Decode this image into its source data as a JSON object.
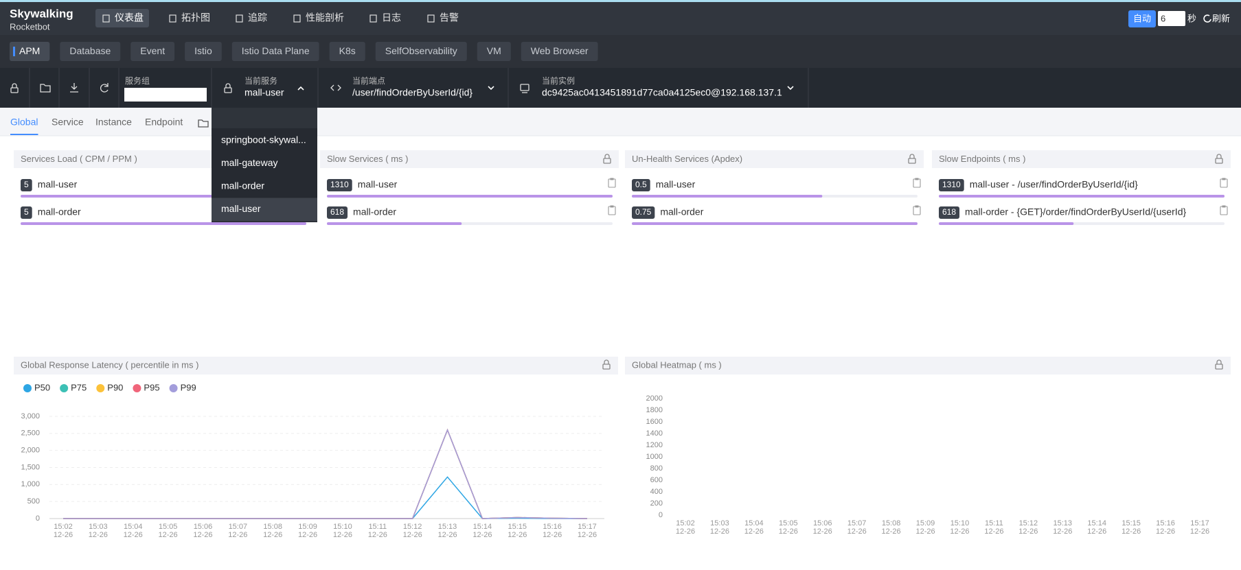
{
  "nav": {
    "logo": "Skywalking",
    "logo_sub": "Rocketbot",
    "items": [
      "仪表盘",
      "拓扑图",
      "追踪",
      "性能剖析",
      "日志",
      "告警"
    ],
    "active": 0,
    "auto": "自动",
    "interval": "6",
    "interval_unit": "秒",
    "refresh": "刷新"
  },
  "layers": {
    "items": [
      "APM",
      "Database",
      "Event",
      "Istio",
      "Istio Data Plane",
      "K8s",
      "SelfObservability",
      "VM",
      "Web Browser"
    ],
    "active": 0
  },
  "selectors": {
    "group_label": "服务组",
    "service_label": "当前服务",
    "service": "mall-user",
    "endpoint_label": "当前端点",
    "endpoint": "/user/findOrderByUserId/{id}",
    "instance_label": "当前实例",
    "instance": "dc9425ac0413451891d77ca0a4125ec0@192.168.137.1"
  },
  "service_dropdown": {
    "options": [
      "springboot-skywal...",
      "mall-gateway",
      "mall-order",
      "mall-user"
    ],
    "selected": 3
  },
  "tabs": {
    "items": [
      "Global",
      "Service",
      "Instance",
      "Endpoint"
    ],
    "active": 0
  },
  "panel_bar_color": "#b993e8",
  "panels": [
    {
      "title": "Services Load ( CPM / PPM )",
      "items": [
        {
          "value": 5,
          "name": "mall-user"
        },
        {
          "value": 5,
          "name": "mall-order"
        }
      ]
    },
    {
      "title": "Slow Services ( ms )",
      "items": [
        {
          "value": 1310,
          "name": "mall-user"
        },
        {
          "value": 618,
          "name": "mall-order"
        }
      ]
    },
    {
      "title": "Un-Health Services (Apdex)",
      "items": [
        {
          "value": 0.5,
          "name": "mall-user"
        },
        {
          "value": 0.75,
          "name": "mall-order"
        }
      ]
    },
    {
      "title": "Slow Endpoints ( ms )",
      "items": [
        {
          "value": 1310,
          "name": "mall-user - /user/findOrderByUserId/{id}"
        },
        {
          "value": 618,
          "name": "mall-order - {GET}/order/findOrderByUserId/{userId}"
        }
      ]
    }
  ],
  "chart_data": [
    {
      "type": "line",
      "title": "Global Response Latency ( percentile in ms )",
      "categories": [
        "15:02",
        "15:03",
        "15:04",
        "15:05",
        "15:06",
        "15:07",
        "15:08",
        "15:09",
        "15:10",
        "15:11",
        "15:12",
        "15:13",
        "15:14",
        "15:15",
        "15:16",
        "15:17"
      ],
      "category_dates": [
        "12-26",
        "12-26",
        "12-26",
        "12-26",
        "12-26",
        "12-26",
        "12-26",
        "12-26",
        "12-26",
        "12-26",
        "12-26",
        "12-26",
        "12-26",
        "12-26",
        "12-26",
        "12-26"
      ],
      "series": [
        {
          "name": "P50",
          "color": "#2ea6e4",
          "values": [
            0,
            0,
            0,
            0,
            0,
            0,
            0,
            0,
            0,
            0,
            0,
            1220,
            0,
            10,
            0,
            0
          ]
        },
        {
          "name": "P75",
          "color": "#3cc0b5",
          "values": [
            0,
            0,
            0,
            0,
            0,
            0,
            0,
            0,
            0,
            0,
            0,
            2600,
            0,
            30,
            10,
            0
          ]
        },
        {
          "name": "P90",
          "color": "#fcc23a",
          "values": [
            0,
            0,
            0,
            0,
            0,
            0,
            0,
            0,
            0,
            0,
            0,
            2600,
            0,
            30,
            10,
            0
          ]
        },
        {
          "name": "P95",
          "color": "#f0657a",
          "values": [
            0,
            0,
            0,
            0,
            0,
            0,
            0,
            0,
            0,
            0,
            0,
            2600,
            0,
            30,
            10,
            0
          ]
        },
        {
          "name": "P99",
          "color": "#a39ddb",
          "values": [
            0,
            0,
            0,
            0,
            0,
            0,
            0,
            0,
            0,
            0,
            0,
            2600,
            0,
            30,
            10,
            0
          ]
        }
      ],
      "ylim": [
        0,
        3000
      ],
      "yticks": [
        0,
        500,
        {
          "value": 1000,
          "label": "1,000"
        },
        {
          "value": 1500,
          "label": "1,500"
        },
        {
          "value": 2000,
          "label": "2,000"
        },
        {
          "value": 2500,
          "label": "2,500"
        },
        {
          "value": 3000,
          "label": "3,000"
        }
      ],
      "grid": true
    },
    {
      "type": "heatmap",
      "title": "Global Heatmap ( ms )",
      "categories": [
        "15:02",
        "15:03",
        "15:04",
        "15:05",
        "15:06",
        "15:07",
        "15:08",
        "15:09",
        "15:10",
        "15:11",
        "15:12",
        "15:13",
        "15:14",
        "15:15",
        "15:16",
        "15:17"
      ],
      "category_dates": [
        "12-26",
        "12-26",
        "12-26",
        "12-26",
        "12-26",
        "12-26",
        "12-26",
        "12-26",
        "12-26",
        "12-26",
        "12-26",
        "12-26",
        "12-26",
        "12-26",
        "12-26",
        "12-26"
      ],
      "ylim": [
        0,
        2000
      ],
      "yticks": [
        0,
        200,
        400,
        600,
        800,
        1000,
        1200,
        1400,
        1600,
        1800,
        2000
      ],
      "grid": false
    }
  ]
}
